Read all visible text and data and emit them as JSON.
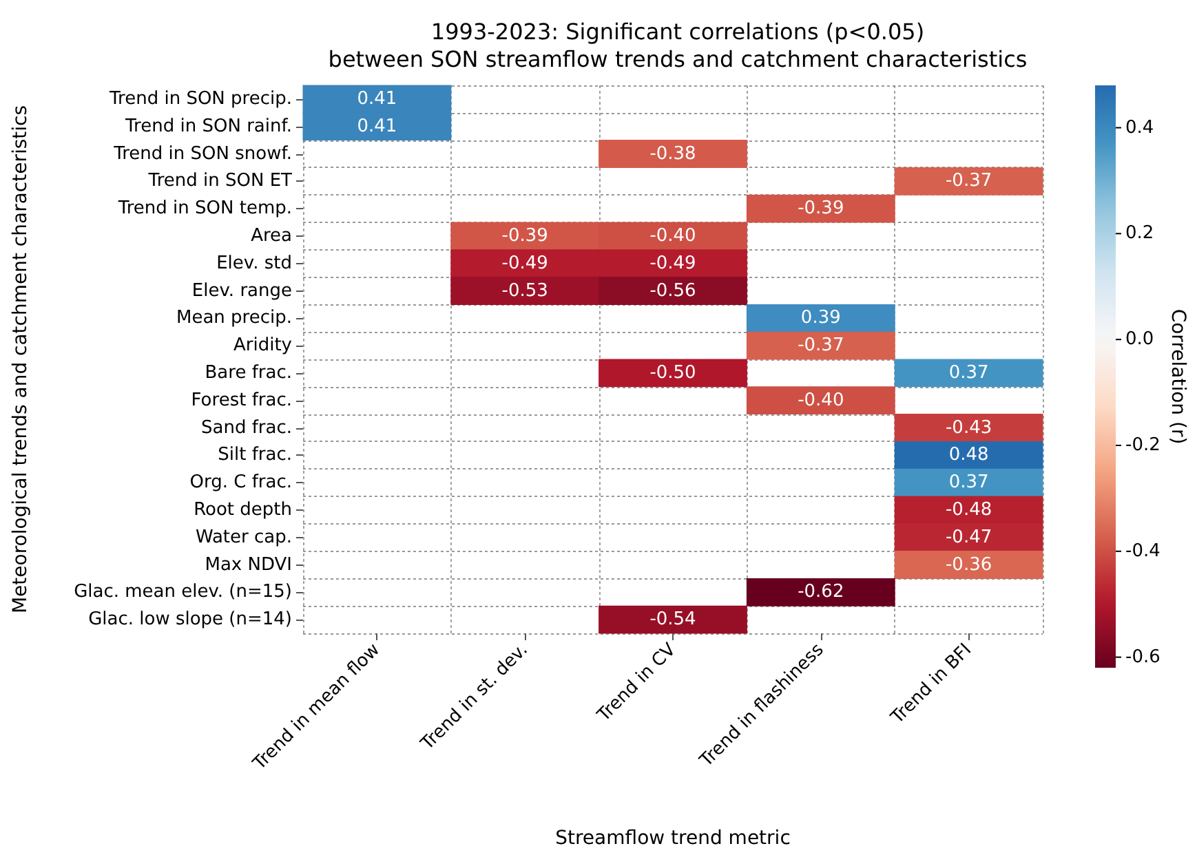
{
  "chart_data": {
    "type": "heatmap",
    "title": "1993-2023: Significant correlations (p<0.05)\nbetween SON streamflow trends and catchment characteristics",
    "xlabel": "Streamflow trend metric",
    "ylabel": "Meteorological trends and catchment characteristics",
    "clabel": "Correlation (r)",
    "categories": [
      "Trend in mean flow",
      "Trend in st. dev.",
      "Trend in CV",
      "Trend in flashiness",
      "Trend in BFI"
    ],
    "y_categories": [
      "Trend in SON precip.",
      "Trend in SON rainf.",
      "Trend in SON snowf.",
      "Trend in SON ET",
      "Trend in SON temp.",
      "Area",
      "Elev. std",
      "Elev. range",
      "Mean precip.",
      "Aridity",
      "Bare frac.",
      "Forest frac.",
      "Sand frac.",
      "Silt frac.",
      "Org. C frac.",
      "Root depth",
      "Water cap.",
      "Max NDVI",
      "Glac. mean elev. (n=15)",
      "Glac. low slope (n=14)"
    ],
    "cells": [
      [
        0.41,
        null,
        null,
        null,
        null
      ],
      [
        0.41,
        null,
        null,
        null,
        null
      ],
      [
        null,
        null,
        -0.38,
        null,
        null
      ],
      [
        null,
        null,
        null,
        null,
        -0.37
      ],
      [
        null,
        null,
        null,
        -0.39,
        null
      ],
      [
        null,
        -0.39,
        -0.4,
        null,
        null
      ],
      [
        null,
        -0.49,
        -0.49,
        null,
        null
      ],
      [
        null,
        -0.53,
        -0.56,
        null,
        null
      ],
      [
        null,
        null,
        null,
        0.39,
        null
      ],
      [
        null,
        null,
        null,
        -0.37,
        null
      ],
      [
        null,
        null,
        -0.5,
        null,
        0.37
      ],
      [
        null,
        null,
        null,
        -0.4,
        null
      ],
      [
        null,
        null,
        null,
        null,
        -0.43
      ],
      [
        null,
        null,
        null,
        null,
        0.48
      ],
      [
        null,
        null,
        null,
        null,
        0.37
      ],
      [
        null,
        null,
        null,
        null,
        -0.48
      ],
      [
        null,
        null,
        null,
        null,
        -0.47
      ],
      [
        null,
        null,
        null,
        null,
        -0.36
      ],
      [
        null,
        null,
        null,
        -0.62,
        null
      ],
      [
        null,
        null,
        -0.54,
        null,
        null
      ]
    ],
    "cell_labels": [
      [
        "0.41",
        null,
        null,
        null,
        null
      ],
      [
        "0.41",
        null,
        null,
        null,
        null
      ],
      [
        null,
        null,
        "-0.38",
        null,
        null
      ],
      [
        null,
        null,
        null,
        null,
        "-0.37"
      ],
      [
        null,
        null,
        null,
        "-0.39",
        null
      ],
      [
        null,
        "-0.39",
        "-0.40",
        null,
        null
      ],
      [
        null,
        "-0.49",
        "-0.49",
        null,
        null
      ],
      [
        null,
        "-0.53",
        "-0.56",
        null,
        null
      ],
      [
        null,
        null,
        null,
        "0.39",
        null
      ],
      [
        null,
        null,
        null,
        "-0.37",
        null
      ],
      [
        null,
        null,
        "-0.50",
        null,
        "0.37"
      ],
      [
        null,
        null,
        null,
        "-0.40",
        null
      ],
      [
        null,
        null,
        null,
        null,
        "-0.43"
      ],
      [
        null,
        null,
        null,
        null,
        "0.48"
      ],
      [
        null,
        null,
        null,
        null,
        "0.37"
      ],
      [
        null,
        null,
        null,
        null,
        "-0.48"
      ],
      [
        null,
        null,
        null,
        null,
        "-0.47"
      ],
      [
        null,
        null,
        null,
        null,
        "-0.36"
      ],
      [
        null,
        null,
        null,
        "-0.62",
        null
      ],
      [
        null,
        null,
        "-0.54",
        null,
        null
      ]
    ],
    "clim": [
      -0.62,
      0.48
    ],
    "cticks": [
      -0.6,
      -0.4,
      -0.2,
      {
        "value": 0,
        "label": "0.0"
      },
      0.2,
      0.4
    ],
    "grid": true
  }
}
